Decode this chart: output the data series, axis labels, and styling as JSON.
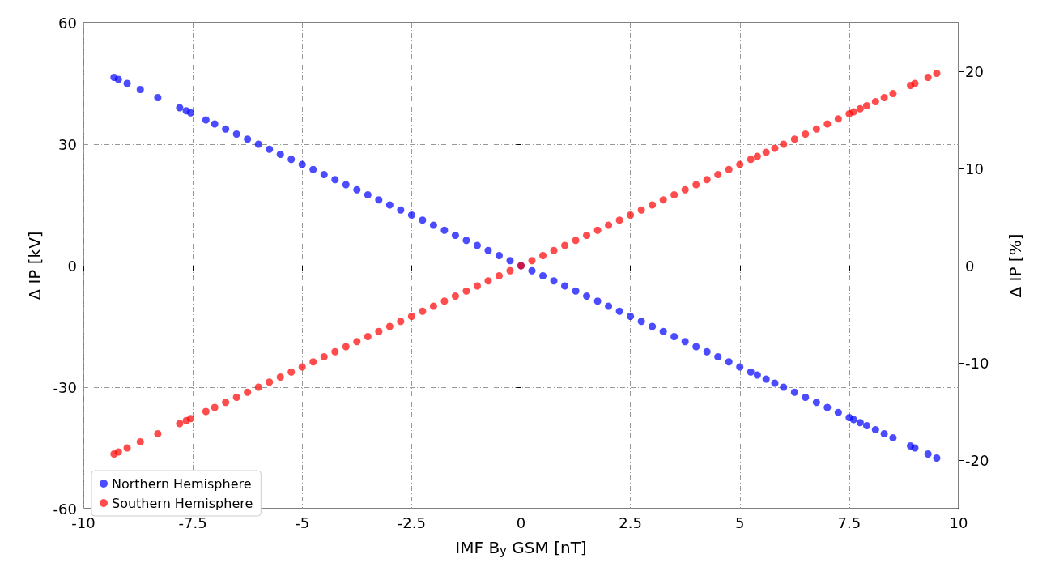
{
  "chart_data": {
    "type": "scatter",
    "xlabel": "IMF B$_{y}$ GSM [nT]",
    "ylabel": "Δ IP [kV]",
    "y2label": "Δ IP [%]",
    "x": [
      -9.3,
      -9.2,
      -9.0,
      -8.7,
      -8.3,
      -7.8,
      -7.65,
      -7.55,
      -7.2,
      -7.0,
      -6.75,
      -6.5,
      -6.25,
      -6.0,
      -5.75,
      -5.5,
      -5.25,
      -5.0,
      -4.75,
      -4.5,
      -4.25,
      -4.0,
      -3.75,
      -3.5,
      -3.25,
      -3.0,
      -2.75,
      -2.5,
      -2.25,
      -2.0,
      -1.75,
      -1.5,
      -1.25,
      -1.0,
      -0.75,
      -0.5,
      -0.25,
      0,
      0.25,
      0.5,
      0.75,
      1.0,
      1.25,
      1.5,
      1.75,
      2.0,
      2.25,
      2.5,
      2.75,
      3.0,
      3.25,
      3.5,
      3.75,
      4.0,
      4.25,
      4.5,
      4.75,
      5.0,
      5.25,
      5.4,
      5.6,
      5.8,
      6.0,
      6.25,
      6.5,
      6.75,
      7.0,
      7.25,
      7.5,
      7.6,
      7.75,
      7.9,
      8.1,
      8.3,
      8.5,
      8.9,
      9.0,
      9.3,
      9.5
    ],
    "series": [
      {
        "name": "Northern Hemisphere",
        "color": "#0000ff",
        "values": [
          46.5,
          46,
          45,
          43.5,
          41.5,
          39,
          38.25,
          37.75,
          36,
          35,
          33.75,
          32.5,
          31.25,
          30,
          28.75,
          27.5,
          26.25,
          25,
          23.75,
          22.5,
          21.25,
          20,
          18.75,
          17.5,
          16.25,
          15,
          13.75,
          12.5,
          11.25,
          10,
          8.75,
          7.5,
          6.25,
          5,
          3.75,
          2.5,
          1.25,
          0,
          -1.25,
          -2.5,
          -3.75,
          -5,
          -6.25,
          -7.5,
          -8.75,
          -10,
          -11.25,
          -12.5,
          -13.75,
          -15,
          -16.25,
          -17.5,
          -18.75,
          -20,
          -21.25,
          -22.5,
          -23.75,
          -25,
          -26.25,
          -27,
          -28,
          -29,
          -30,
          -31.25,
          -32.5,
          -33.75,
          -35,
          -36.25,
          -37.5,
          -38,
          -38.75,
          -39.5,
          -40.5,
          -41.5,
          -42.5,
          -44.5,
          -45,
          -46.5,
          -47.5
        ]
      },
      {
        "name": "Southern Hemisphere",
        "color": "#ff0000",
        "values": [
          -46.5,
          -46,
          -45,
          -43.5,
          -41.5,
          -39,
          -38.25,
          -37.75,
          -36,
          -35,
          -33.75,
          -32.5,
          -31.25,
          -30,
          -28.75,
          -27.5,
          -26.25,
          -25,
          -23.75,
          -22.5,
          -21.25,
          -20,
          -18.75,
          -17.5,
          -16.25,
          -15,
          -13.75,
          -12.5,
          -11.25,
          -10,
          -8.75,
          -7.5,
          -6.25,
          -5,
          -3.75,
          -2.5,
          -1.25,
          0,
          1.25,
          2.5,
          3.75,
          5,
          6.25,
          7.5,
          8.75,
          10,
          11.25,
          12.5,
          13.75,
          15,
          16.25,
          17.5,
          18.75,
          20,
          21.25,
          22.5,
          23.75,
          25,
          26.25,
          27,
          28,
          29,
          30,
          31.25,
          32.5,
          33.75,
          35,
          36.25,
          37.5,
          38,
          38.75,
          39.5,
          40.5,
          41.5,
          42.5,
          44.5,
          45,
          46.5,
          47.5
        ]
      }
    ],
    "xlim": [
      -10,
      10
    ],
    "xticks": [
      -10,
      -7.5,
      -5,
      -2.5,
      0,
      2.5,
      5,
      7.5,
      10
    ],
    "ylim": [
      -60,
      60
    ],
    "yticks": [
      -60,
      -30,
      0,
      30,
      60
    ],
    "y2lim": [
      -25,
      25
    ],
    "y2ticks": [
      -20,
      -10,
      0,
      10,
      20
    ],
    "grid": true,
    "legend": "bottom left",
    "marker": "circle"
  }
}
